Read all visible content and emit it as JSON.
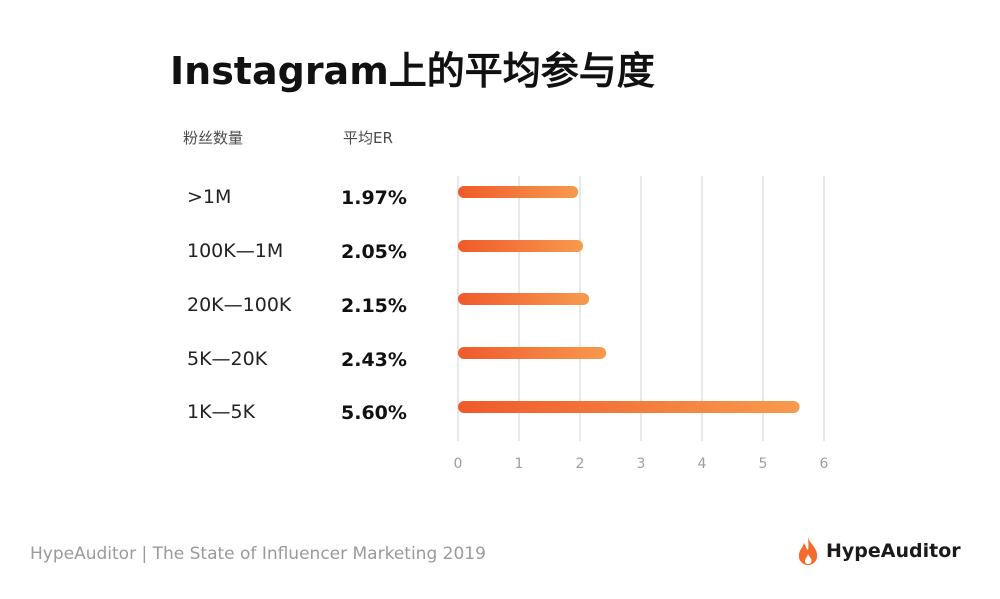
{
  "header": {
    "title": "Instagram上的平均参与度",
    "col_followers": "粉丝数量",
    "col_er": "平均ER"
  },
  "rows": [
    {
      "label": ">1M",
      "value_text": "1.97%"
    },
    {
      "label": "100K—1M",
      "value_text": "2.05%"
    },
    {
      "label": "20K—100K",
      "value_text": "2.15%"
    },
    {
      "label": "5K—20K",
      "value_text": "2.43%"
    },
    {
      "label": "1K—5K",
      "value_text": "5.60%"
    }
  ],
  "chart_data": {
    "type": "bar",
    "orientation": "horizontal",
    "categories": [
      ">1M",
      "100K—1M",
      "20K—100K",
      "5K—20K",
      "1K—5K"
    ],
    "values": [
      1.97,
      2.05,
      2.15,
      2.43,
      5.6
    ],
    "xlim": [
      0,
      6
    ],
    "xticks": [
      "0",
      "1",
      "2",
      "3",
      "4",
      "5",
      "6"
    ],
    "grid": true,
    "bar_color_start": "#f05a2b",
    "bar_color_end": "#f79a4e"
  },
  "footer": {
    "source": "HypeAuditor | The State of Influencer Marketing 2019",
    "brand": "HypeAuditor",
    "brand_icon": "flame-icon",
    "brand_color": "#f26b2f"
  }
}
